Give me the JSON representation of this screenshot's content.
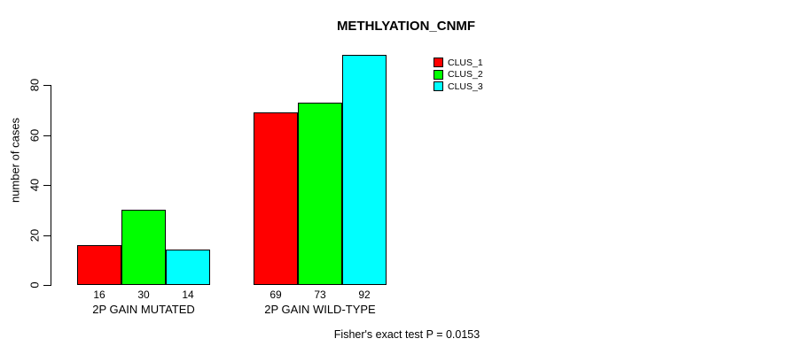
{
  "chart_data": {
    "type": "bar",
    "title": "METHLYATION_CNMF",
    "ylabel": "number of cases",
    "xlabel": "",
    "categories": [
      "2P GAIN MUTATED",
      "2P GAIN WILD-TYPE"
    ],
    "series": [
      {
        "name": "CLUS_1",
        "color": "#FF0000",
        "values": [
          16,
          69
        ]
      },
      {
        "name": "CLUS_2",
        "color": "#00FF00",
        "values": [
          30,
          73
        ]
      },
      {
        "name": "CLUS_3",
        "color": "#00FFFF",
        "values": [
          14,
          92
        ]
      }
    ],
    "yticks": [
      0,
      20,
      40,
      60,
      80
    ],
    "ylim": [
      0,
      92
    ],
    "grid": false,
    "show_values_under_bars": true,
    "legend_position": "top-right",
    "annotation": "Fisher's exact test P = 0.0153"
  }
}
